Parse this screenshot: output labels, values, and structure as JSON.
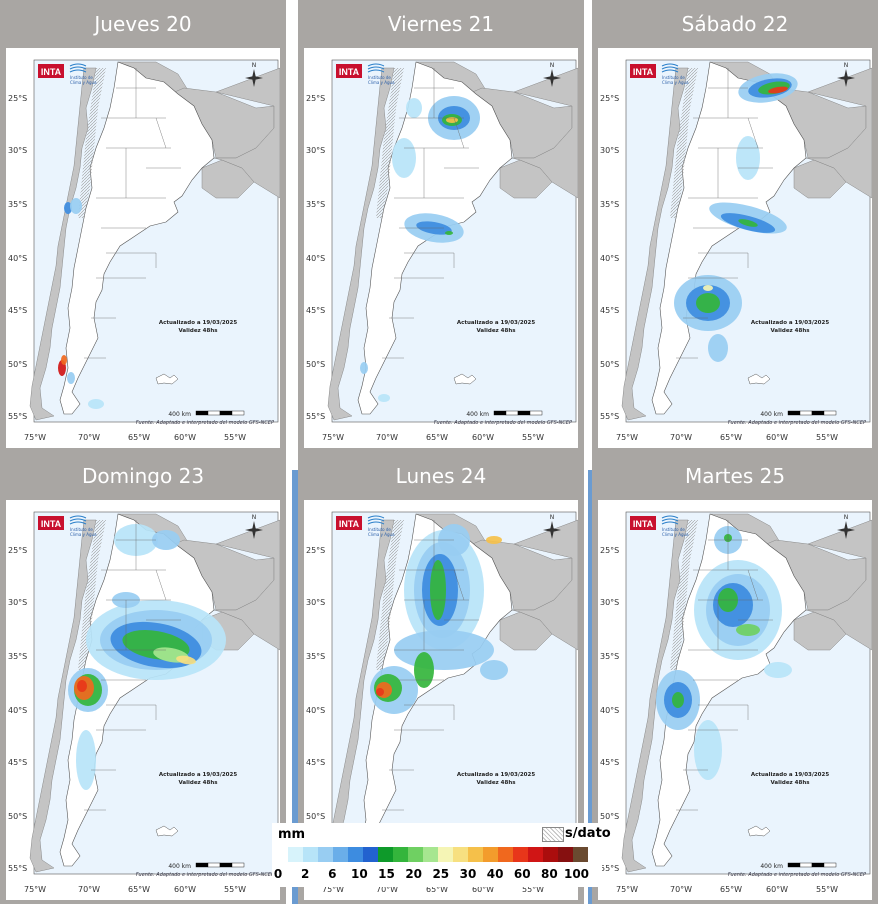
{
  "panels": [
    {
      "title": "Jueves 20"
    },
    {
      "title": "Viernes 21"
    },
    {
      "title": "Sábado 22"
    },
    {
      "title": "Domingo 23"
    },
    {
      "title": "Lunes 24"
    },
    {
      "title": "Martes 25"
    }
  ],
  "map": {
    "logo_text": "INTA",
    "institute_text": [
      "Instituto de",
      "Clima y Agua"
    ],
    "updated": "Actualizado a 19/03/2025",
    "validity": "Validez 48hs",
    "scale": "400 km",
    "source": "Fuente: Adaptado e interpretado del modelo GFS-NCEP",
    "lat_labels": [
      "25°S",
      "30°S",
      "35°S",
      "40°S",
      "45°S",
      "50°S",
      "55°S"
    ],
    "lon_labels": [
      "75°W",
      "70°W",
      "65°W",
      "60°W",
      "55°W"
    ],
    "north": "N"
  },
  "legend": {
    "unit": "mm",
    "no_data": "s/dato",
    "colors": [
      "#d7f3fb",
      "#b7e4f8",
      "#98cdf2",
      "#6aaee9",
      "#3d8ce0",
      "#2262cf",
      "#0e9a2a",
      "#34b53c",
      "#6fd062",
      "#a6e690",
      "#f5f5b5",
      "#f7e080",
      "#f5c04a",
      "#f39c2c",
      "#f0681e",
      "#e8361a",
      "#d01515",
      "#ab0d0d",
      "#861010",
      "#6a4a30"
    ],
    "labels": [
      "0",
      "2",
      "6",
      "10",
      "15",
      "20",
      "25",
      "30",
      "40",
      "60",
      "80",
      "100"
    ]
  }
}
